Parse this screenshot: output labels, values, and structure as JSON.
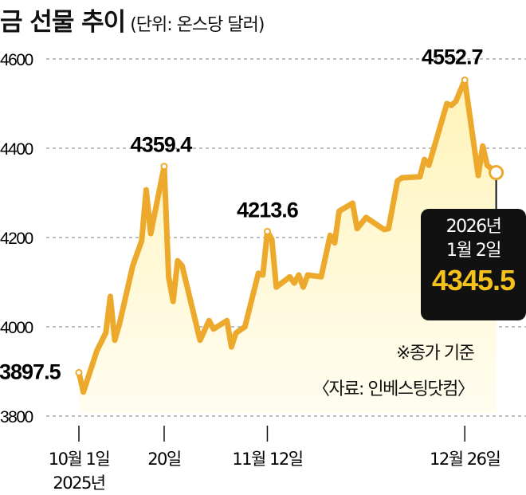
{
  "chart_data": {
    "type": "area",
    "title": "금 선물 추이",
    "unit": "(단위: 온스당 달러)",
    "ylim": [
      3800,
      4600
    ],
    "yticks": [
      4600,
      4400,
      4200,
      4000,
      3800
    ],
    "grid": true,
    "line_color": "#eda92c",
    "fill_color": "#fff8cf",
    "xticks": [
      {
        "date": "2025-10-01",
        "label": "10월 1일",
        "sub": "2025년"
      },
      {
        "date": "2025-10-20",
        "label": "20일"
      },
      {
        "date": "2025-11-12",
        "label": "11월 12일"
      },
      {
        "date": "2025-12-26",
        "label": "12월 26일"
      }
    ],
    "points": [
      [
        "2025-10-01",
        3897.5
      ],
      [
        "2025-10-02",
        3854
      ],
      [
        "2025-10-05",
        3946
      ],
      [
        "2025-10-07",
        3987
      ],
      [
        "2025-10-08",
        4068
      ],
      [
        "2025-10-09",
        3970
      ],
      [
        "2025-10-10",
        4005
      ],
      [
        "2025-10-13",
        4137
      ],
      [
        "2025-10-15",
        4193
      ],
      [
        "2025-10-16",
        4307
      ],
      [
        "2025-10-17",
        4209
      ],
      [
        "2025-10-20",
        4359.4
      ],
      [
        "2025-10-21",
        4112
      ],
      [
        "2025-10-22",
        4057
      ],
      [
        "2025-10-23",
        4148
      ],
      [
        "2025-10-24",
        4137
      ],
      [
        "2025-10-28",
        3970
      ],
      [
        "2025-10-30",
        4014
      ],
      [
        "2025-10-31",
        3995
      ],
      [
        "2025-11-03",
        4014
      ],
      [
        "2025-11-04",
        3955
      ],
      [
        "2025-11-05",
        3986
      ],
      [
        "2025-11-07",
        4000
      ],
      [
        "2025-11-10",
        4120
      ],
      [
        "2025-11-11",
        4116
      ],
      [
        "2025-11-12",
        4213.6
      ],
      [
        "2025-11-13",
        4196
      ],
      [
        "2025-11-14",
        4089
      ],
      [
        "2025-11-17",
        4112
      ],
      [
        "2025-11-18",
        4098
      ],
      [
        "2025-11-19",
        4116
      ],
      [
        "2025-11-20",
        4089
      ],
      [
        "2025-11-21",
        4116
      ],
      [
        "2025-11-24",
        4112
      ],
      [
        "2025-11-26",
        4205
      ],
      [
        "2025-11-27",
        4188
      ],
      [
        "2025-11-28",
        4259
      ],
      [
        "2025-12-01",
        4277
      ],
      [
        "2025-12-02",
        4220
      ],
      [
        "2025-12-04",
        4245
      ],
      [
        "2025-12-08",
        4218
      ],
      [
        "2025-12-09",
        4220
      ],
      [
        "2025-12-11",
        4327
      ],
      [
        "2025-12-12",
        4334
      ],
      [
        "2025-12-16",
        4336
      ],
      [
        "2025-12-17",
        4375
      ],
      [
        "2025-12-18",
        4362
      ],
      [
        "2025-12-22",
        4500
      ],
      [
        "2025-12-23",
        4496
      ],
      [
        "2025-12-24",
        4505
      ],
      [
        "2025-12-26",
        4552.7
      ],
      [
        "2025-12-29",
        4339
      ],
      [
        "2025-12-30",
        4405
      ],
      [
        "2025-12-31",
        4362
      ],
      [
        "2026-01-02",
        4345.5
      ]
    ],
    "annotations": [
      {
        "date": "2025-10-01",
        "label": "3897.5"
      },
      {
        "date": "2025-10-20",
        "label": "4359.4"
      },
      {
        "date": "2025-11-12",
        "label": "4213.6"
      },
      {
        "date": "2025-12-26",
        "label": "4552.7"
      }
    ],
    "callout": {
      "date_line1": "2026년",
      "date_line2": "1월 2일",
      "value": "4345.5",
      "value_color": "#f5c21b"
    },
    "notes": {
      "basis": "※종가 기준",
      "source": "〈자료: 인베스팅닷컴〉"
    }
  }
}
